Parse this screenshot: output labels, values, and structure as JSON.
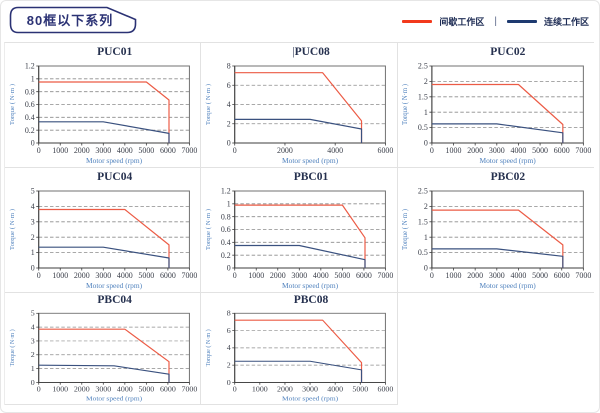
{
  "header": {
    "badge": "80框以下系列"
  },
  "legend": {
    "separator": "|",
    "items": [
      {
        "label": "间歇工作区",
        "color": "#f2391c"
      },
      {
        "label": "连续工作区",
        "color": "#1e3a70"
      }
    ]
  },
  "style": {
    "chart_red": "#ec5b45",
    "chart_blue": "#3a517f",
    "grid_dash": "#8c8c8c",
    "axis_dark": "#3d3d3d",
    "border_gray": "#707070",
    "tick_text": "#3c404b",
    "axis_label_blue": "#4f81bd"
  },
  "chart_data": [
    {
      "type": "line",
      "title": "PUC01",
      "xlabel": "Motor speed (rpm)",
      "ylabel": "Torque ( N·m )",
      "xlim": [
        0,
        7000
      ],
      "xtick_step": 1000,
      "ylim": [
        0,
        1.2
      ],
      "ytick_step": 0.2,
      "series": [
        {
          "name": "间歇工作区",
          "color": "#ec5b45",
          "points": [
            [
              0,
              0.95
            ],
            [
              5000,
              0.95
            ],
            [
              6050,
              0.67
            ],
            [
              6050,
              0
            ]
          ]
        },
        {
          "name": "连续工作区",
          "color": "#3a517f",
          "points": [
            [
              0,
              0.33
            ],
            [
              3000,
              0.33
            ],
            [
              6050,
              0.15
            ],
            [
              6050,
              0
            ]
          ]
        }
      ]
    },
    {
      "type": "line",
      "title": "PUC08",
      "title_cursor": "|",
      "xlabel": "Motor speed (rpm)",
      "ylabel": "Torque ( N·m )",
      "xlim": [
        0,
        6000
      ],
      "xtick_step": 2000,
      "ylim": [
        0,
        8
      ],
      "ytick_step": 2,
      "series": [
        {
          "name": "间歇工作区",
          "color": "#ec5b45",
          "points": [
            [
              0,
              7.3
            ],
            [
              3500,
              7.3
            ],
            [
              5050,
              2.3
            ],
            [
              5050,
              0
            ]
          ]
        },
        {
          "name": "连续工作区",
          "color": "#3a517f",
          "points": [
            [
              0,
              2.45
            ],
            [
              3000,
              2.45
            ],
            [
              5050,
              1.45
            ],
            [
              5050,
              0
            ]
          ]
        }
      ]
    },
    {
      "type": "line",
      "title": "PUC02",
      "xlabel": "Motor speed (rpm)",
      "ylabel": "Torque ( N·m )",
      "xlim": [
        0,
        7000
      ],
      "xtick_step": 1000,
      "ylim": [
        0,
        2.5
      ],
      "ytick_step": 0.5,
      "series": [
        {
          "name": "间歇工作区",
          "color": "#ec5b45",
          "points": [
            [
              0,
              1.9
            ],
            [
              4000,
              1.9
            ],
            [
              6050,
              0.6
            ],
            [
              6050,
              0
            ]
          ]
        },
        {
          "name": "连续工作区",
          "color": "#3a517f",
          "points": [
            [
              0,
              0.62
            ],
            [
              3000,
              0.62
            ],
            [
              6050,
              0.33
            ],
            [
              6050,
              0
            ]
          ]
        }
      ]
    },
    {
      "type": "line",
      "title": "PUC04",
      "xlabel": "Motor speed (rpm)",
      "ylabel": "Torque ( N·m )",
      "xlim": [
        0,
        7000
      ],
      "xtick_step": 1000,
      "ylim": [
        0,
        5
      ],
      "ytick_step": 1,
      "series": [
        {
          "name": "间歇工作区",
          "color": "#ec5b45",
          "points": [
            [
              0,
              3.8
            ],
            [
              4000,
              3.8
            ],
            [
              6050,
              1.5
            ],
            [
              6050,
              0
            ]
          ]
        },
        {
          "name": "连续工作区",
          "color": "#3a517f",
          "points": [
            [
              0,
              1.35
            ],
            [
              3000,
              1.35
            ],
            [
              6050,
              0.65
            ],
            [
              6050,
              0
            ]
          ]
        }
      ]
    },
    {
      "type": "line",
      "title": "PBC01",
      "xlabel": "Motor speed (rpm)",
      "ylabel": "Torque ( N·m )",
      "xlim": [
        0,
        7000
      ],
      "xtick_step": 1000,
      "ylim": [
        0,
        1.2
      ],
      "ytick_step": 0.2,
      "series": [
        {
          "name": "间歇工作区",
          "color": "#ec5b45",
          "points": [
            [
              0,
              0.98
            ],
            [
              5000,
              0.98
            ],
            [
              6050,
              0.47
            ],
            [
              6050,
              0
            ]
          ]
        },
        {
          "name": "连续工作区",
          "color": "#3a517f",
          "points": [
            [
              0,
              0.35
            ],
            [
              3000,
              0.35
            ],
            [
              6050,
              0.13
            ],
            [
              6050,
              0
            ]
          ]
        }
      ]
    },
    {
      "type": "line",
      "title": "PBC02",
      "xlabel": "Motor speed (rpm)",
      "ylabel": "Torque ( N·m )",
      "xlim": [
        0,
        7000
      ],
      "xtick_step": 1000,
      "ylim": [
        0,
        2.5
      ],
      "ytick_step": 0.5,
      "series": [
        {
          "name": "间歇工作区",
          "color": "#ec5b45",
          "points": [
            [
              0,
              1.88
            ],
            [
              4000,
              1.88
            ],
            [
              6050,
              0.75
            ],
            [
              6050,
              0
            ]
          ]
        },
        {
          "name": "连续工作区",
          "color": "#3a517f",
          "points": [
            [
              0,
              0.62
            ],
            [
              3000,
              0.62
            ],
            [
              6050,
              0.38
            ],
            [
              6050,
              0
            ]
          ]
        }
      ]
    },
    {
      "type": "line",
      "title": "PBC04",
      "xlabel": "Motor speed (rpm)",
      "ylabel": "Torque ( N·m )",
      "xlim": [
        0,
        7000
      ],
      "xtick_step": 1000,
      "ylim": [
        0,
        5
      ],
      "ytick_step": 1,
      "series": [
        {
          "name": "间歇工作区",
          "color": "#ec5b45",
          "points": [
            [
              0,
              3.85
            ],
            [
              4000,
              3.85
            ],
            [
              6050,
              1.5
            ],
            [
              6050,
              0
            ]
          ]
        },
        {
          "name": "连续工作区",
          "color": "#3a517f",
          "points": [
            [
              0,
              1.25
            ],
            [
              3500,
              1.2
            ],
            [
              6050,
              0.6
            ],
            [
              6050,
              0
            ]
          ]
        }
      ]
    },
    {
      "type": "line",
      "title": "PBC08",
      "xlabel": "Motor speed (rpm)",
      "ylabel": "Torque ( N·m )",
      "xlim": [
        0,
        6000
      ],
      "xtick_step": 1000,
      "ylim": [
        0,
        8
      ],
      "ytick_step": 2,
      "series": [
        {
          "name": "间歇工作区",
          "color": "#ec5b45",
          "points": [
            [
              0,
              7.2
            ],
            [
              3500,
              7.2
            ],
            [
              5050,
              2.3
            ],
            [
              5050,
              0
            ]
          ]
        },
        {
          "name": "连续工作区",
          "color": "#3a517f",
          "points": [
            [
              0,
              2.45
            ],
            [
              3000,
              2.45
            ],
            [
              5050,
              1.45
            ],
            [
              5050,
              0
            ]
          ]
        }
      ]
    }
  ]
}
